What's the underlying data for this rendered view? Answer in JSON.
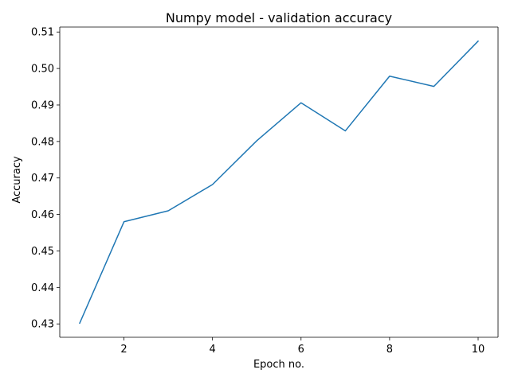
{
  "chart_data": {
    "type": "line",
    "title": "Numpy model - validation accuracy",
    "xlabel": "Epoch no.",
    "ylabel": "Accuracy",
    "x": [
      1,
      2,
      3,
      4,
      5,
      6,
      7,
      8,
      9,
      10
    ],
    "series": [
      {
        "values": [
          0.4302,
          0.458,
          0.461,
          0.4682,
          0.4802,
          0.4906,
          0.4829,
          0.4979,
          0.4951,
          0.5075
        ],
        "color": "#1f77b4"
      }
    ],
    "xlim": [
      0.55,
      10.45
    ],
    "ylim": [
      0.42634,
      0.51136
    ],
    "xticks": [
      2,
      4,
      6,
      8,
      10
    ],
    "xtick_labels": [
      "2",
      "4",
      "6",
      "8",
      "10"
    ],
    "yticks": [
      0.43,
      0.44,
      0.45,
      0.46,
      0.47,
      0.48,
      0.49,
      0.5,
      0.51
    ],
    "ytick_labels": [
      "0.43",
      "0.44",
      "0.45",
      "0.46",
      "0.47",
      "0.48",
      "0.49",
      "0.50",
      "0.51"
    ],
    "grid": false,
    "legend": "none"
  }
}
